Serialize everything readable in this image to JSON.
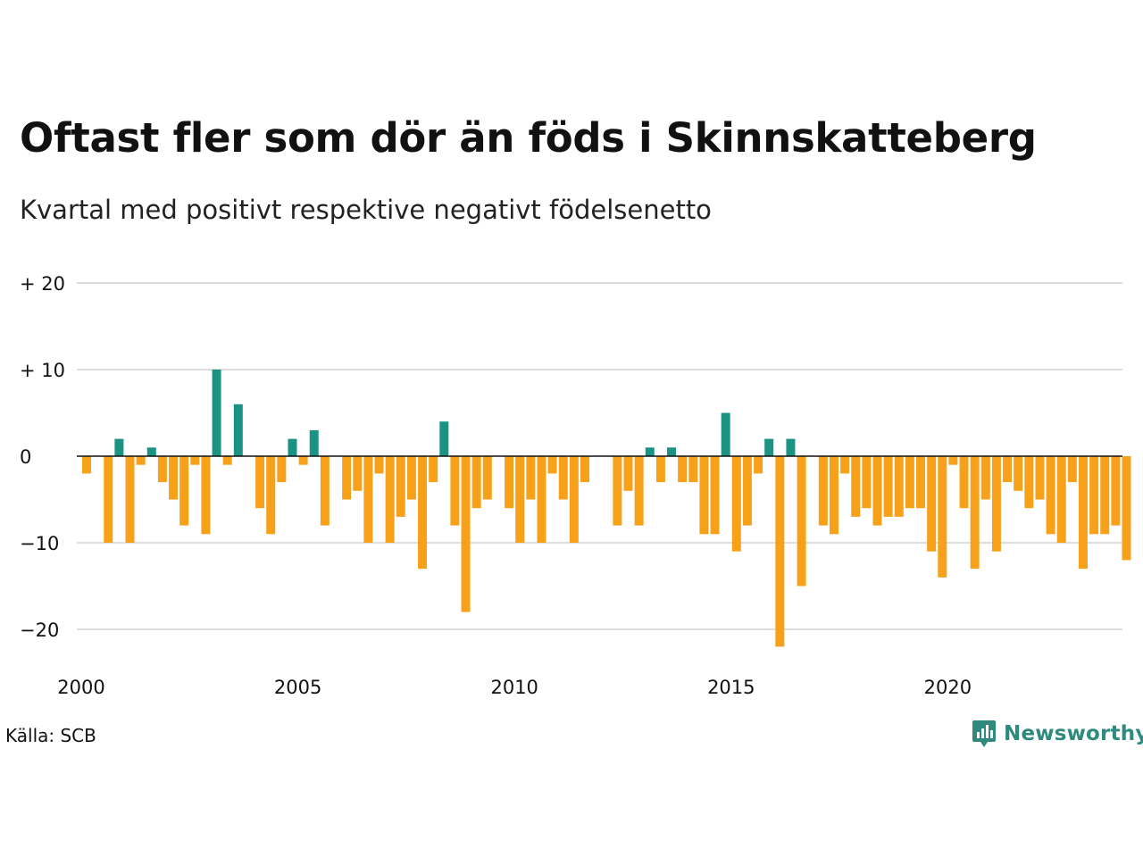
{
  "header": {
    "title": "Oftast fler som dör än föds i Skinnskatteberg",
    "subtitle": "Kvartal med positivt respektive negativt födelsenetto"
  },
  "footer": {
    "source": "Källa: SCB",
    "brand": "Newsworthy"
  },
  "colors": {
    "positive": "#1a9383",
    "negative": "#f7a11a",
    "grid": "#dddddd",
    "zero_line": "#111111",
    "brand": "#2e8a7c"
  },
  "chart_data": {
    "type": "bar",
    "title": "Oftast fler som dör än föds i Skinnskatteberg",
    "subtitle": "Kvartal med positivt respektive negativt födelsenetto",
    "xlabel": "",
    "ylabel": "",
    "x_start_year": 2000,
    "periods_per_year": 4,
    "x_ticks": [
      "2000",
      "2005",
      "2010",
      "2015",
      "2020"
    ],
    "y_ticks": [
      {
        "value": 20,
        "label": "+ 20"
      },
      {
        "value": 10,
        "label": "+ 10"
      },
      {
        "value": 0,
        "label": "0"
      },
      {
        "value": -10,
        "label": "−10"
      },
      {
        "value": -20,
        "label": "−20"
      }
    ],
    "ylim": [
      -24,
      20
    ],
    "grid": true,
    "values": [
      -2,
      0,
      -10,
      2,
      -10,
      -1,
      1,
      -3,
      -5,
      -8,
      -1,
      -9,
      10,
      -1,
      6,
      0,
      -6,
      -9,
      -3,
      2,
      -1,
      3,
      -8,
      0,
      -5,
      -4,
      -10,
      -2,
      -10,
      -7,
      -5,
      -13,
      -3,
      4,
      -8,
      -18,
      -6,
      -5,
      0,
      -6,
      -10,
      -5,
      -10,
      -2,
      -5,
      -10,
      -3,
      0,
      0,
      -8,
      -4,
      -8,
      1,
      -3,
      1,
      -3,
      -3,
      -9,
      -9,
      5,
      -11,
      -8,
      -2,
      2,
      -22,
      2,
      -15,
      0,
      -8,
      -9,
      -2,
      -7,
      -6,
      -8,
      -7,
      -7,
      -6,
      -6,
      -11,
      -14,
      -1,
      -6,
      -13,
      -5,
      -11,
      -3,
      -4,
      -6,
      -5,
      -9,
      -10,
      -3,
      -13,
      -9,
      -9,
      -8,
      -12
    ]
  }
}
